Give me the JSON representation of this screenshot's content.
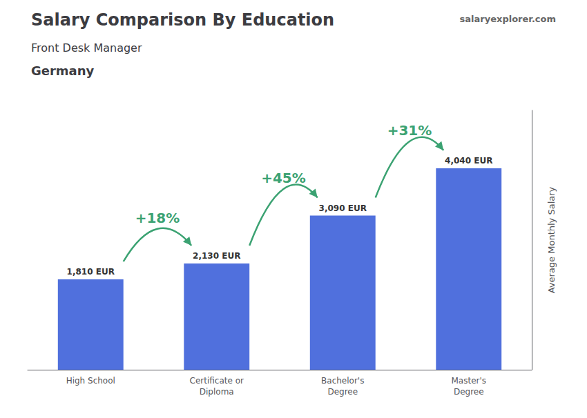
{
  "chart_data": {
    "type": "bar",
    "title": "Salary Comparison By Education",
    "subtitle": [
      "Front Desk Manager",
      "Germany"
    ],
    "source": "salaryexplorer.com",
    "categories": [
      "High School",
      "Certificate or\nDiploma",
      "Bachelor's\nDegree",
      "Master's\nDegree"
    ],
    "values": [
      1810,
      2130,
      3090,
      4040
    ],
    "value_labels": [
      "1,810 EUR",
      "2,130 EUR",
      "3,090 EUR",
      "4,040 EUR"
    ],
    "data_labels": true,
    "annotations": [
      "+18%",
      "+45%",
      "+31%"
    ],
    "ylabel": "Average Monthly Salary",
    "ylim": [
      0,
      5200
    ],
    "tick_labels": "x",
    "grid": false
  }
}
